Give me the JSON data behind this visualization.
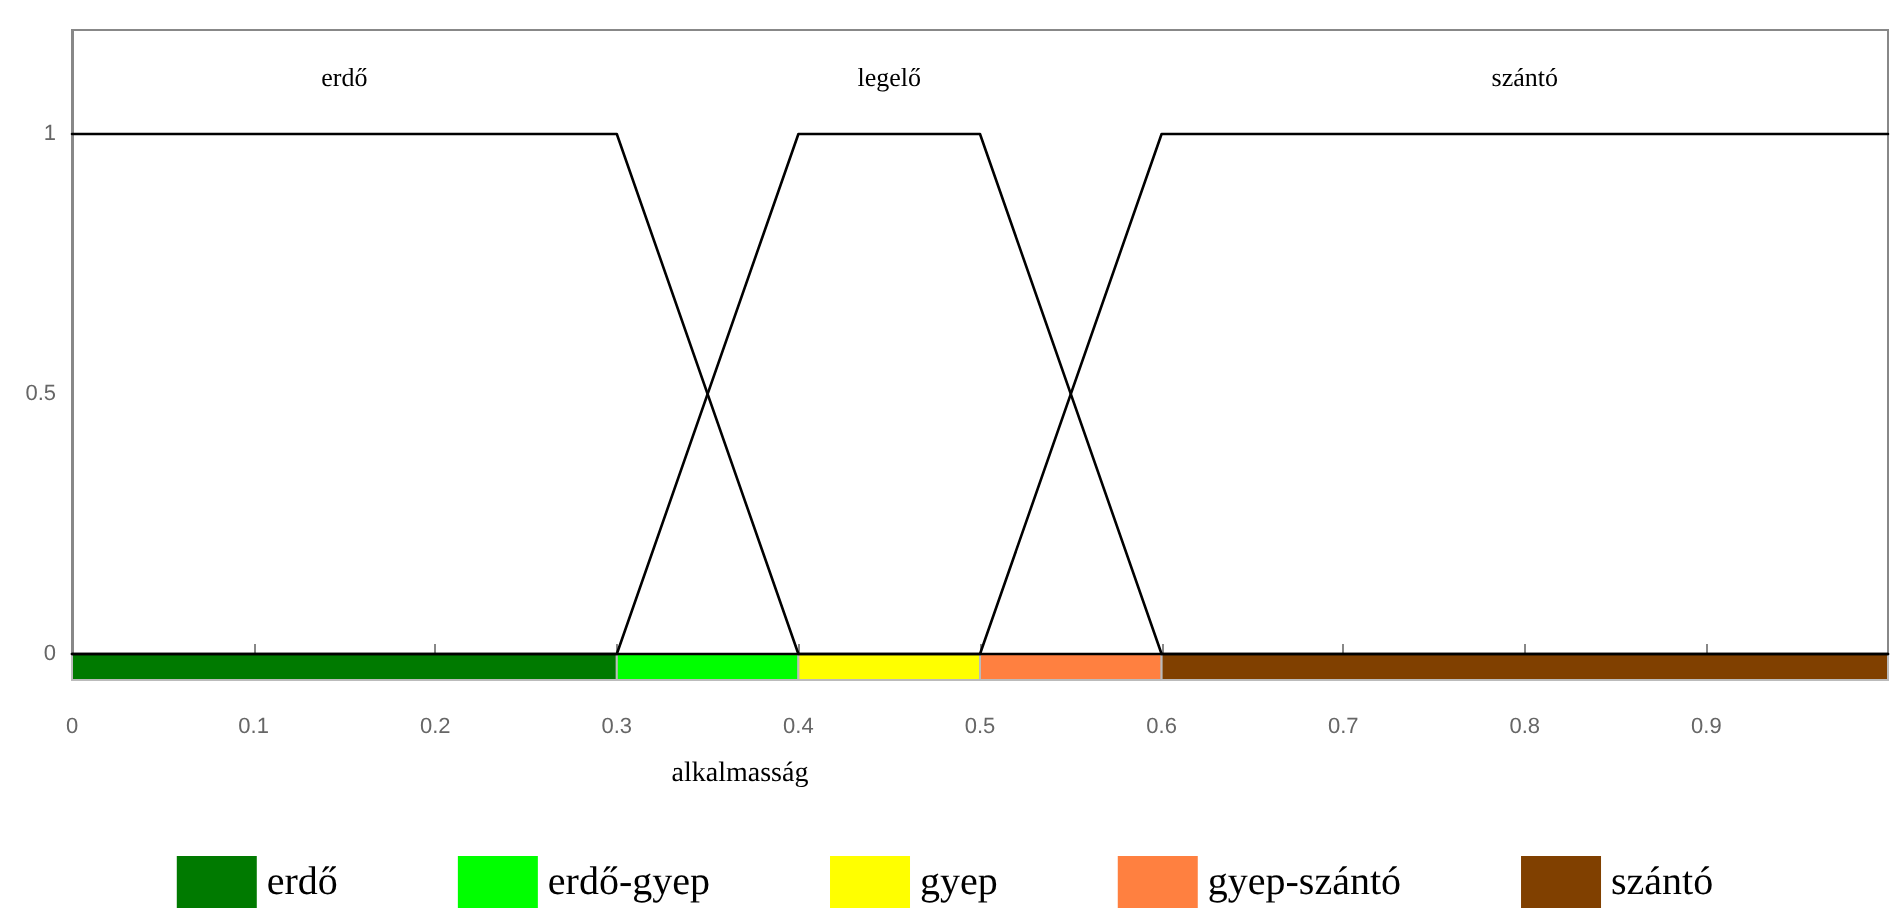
{
  "chart_data": {
    "type": "line",
    "xlabel": "alkalmasság",
    "series": [
      {
        "name": "erdő",
        "color": "#000000",
        "x": [
          0,
          0.3,
          0.4,
          1
        ],
        "values": [
          1,
          1,
          0,
          0
        ]
      },
      {
        "name": "legelő",
        "color": "#000000",
        "x": [
          0,
          0.3,
          0.4,
          0.5,
          0.6,
          1
        ],
        "values": [
          0,
          0,
          1,
          1,
          0,
          0
        ]
      },
      {
        "name": "szántó",
        "color": "#000000",
        "x": [
          0,
          0.5,
          0.6,
          1
        ],
        "values": [
          0,
          0,
          1,
          1
        ]
      }
    ],
    "bands": [
      {
        "axis": "x",
        "from": 0,
        "to": 0.3,
        "label": "erdő",
        "color": "#007a00"
      },
      {
        "axis": "x",
        "from": 0.3,
        "to": 0.4,
        "label": "erdő-gyep",
        "color": "#00ff00"
      },
      {
        "axis": "x",
        "from": 0.4,
        "to": 0.5,
        "label": "gyep",
        "color": "#ffff00"
      },
      {
        "axis": "x",
        "from": 0.5,
        "to": 0.6,
        "label": "gyep-szántó",
        "color": "#ff8040"
      },
      {
        "axis": "x",
        "from": 0.6,
        "to": 1,
        "label": "szántó",
        "color": "#804000"
      }
    ],
    "xlim": [
      0,
      1
    ],
    "xticks": [
      0,
      0.1,
      0.2,
      0.3,
      0.4,
      0.5,
      0.6,
      0.7,
      0.8,
      0.9
    ],
    "ylim": [
      -0.05,
      1.2
    ],
    "yticks": [
      0,
      0.5,
      1
    ],
    "grid": false,
    "legend": "bottom",
    "marker": "none",
    "line_style": "solid"
  }
}
